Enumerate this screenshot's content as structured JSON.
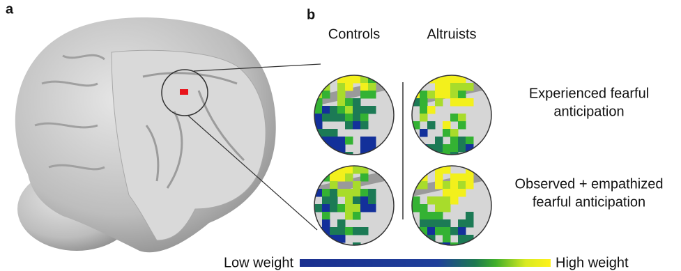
{
  "panels": {
    "a": {
      "label": "a"
    },
    "b": {
      "label": "b",
      "columns": [
        "Controls",
        "Altruists"
      ],
      "rows": [
        {
          "label_lines": [
            "Experienced fearful",
            "anticipation"
          ]
        },
        {
          "label_lines": [
            "Observed + empathized",
            "fearful anticipation"
          ]
        }
      ],
      "colorbar": {
        "low_label": "Low weight",
        "high_label": "High weight"
      }
    }
  }
}
